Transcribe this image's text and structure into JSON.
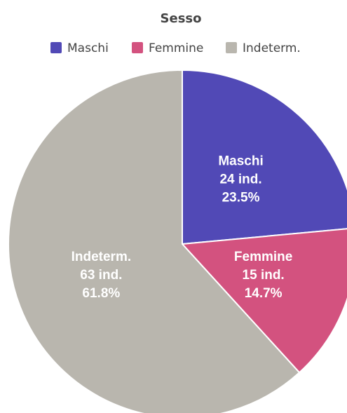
{
  "chart_data": {
    "type": "pie",
    "title": "Sesso",
    "categories": [
      "Maschi",
      "Femmine",
      "Indeterm."
    ],
    "values": [
      24,
      15,
      63
    ],
    "value_labels": [
      "24 ind.",
      "15 ind.",
      "63 ind."
    ],
    "percent_labels": [
      "23.5%",
      "14.7%",
      "61.8%"
    ],
    "colors": [
      "#5149b6",
      "#d3527f",
      "#b9b6ae"
    ],
    "legend": "top"
  }
}
